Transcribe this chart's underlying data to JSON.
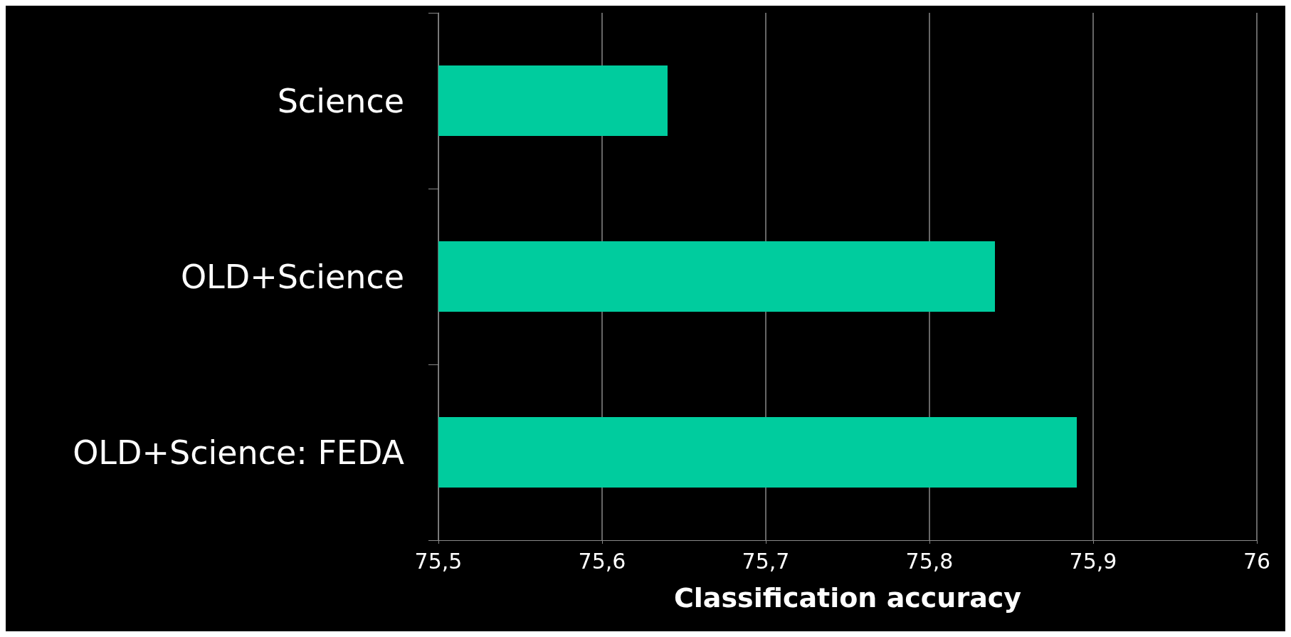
{
  "chart_data": {
    "type": "bar",
    "orientation": "horizontal",
    "xlabel": "Classification accuracy",
    "categories": [
      "Science",
      "OLD+Science",
      "OLD+Science: FEDA"
    ],
    "values": [
      75.64,
      75.84,
      75.89
    ],
    "color": "#00cc9e",
    "xlim": [
      75.5,
      76
    ],
    "xticks": [
      {
        "value": 75.5,
        "label": "75,5"
      },
      {
        "value": 75.6,
        "label": "75,6"
      },
      {
        "value": 75.7,
        "label": "75,7"
      },
      {
        "value": 75.8,
        "label": "75,8"
      },
      {
        "value": 75.9,
        "label": "75,9"
      },
      76
    ],
    "grid": "x"
  }
}
